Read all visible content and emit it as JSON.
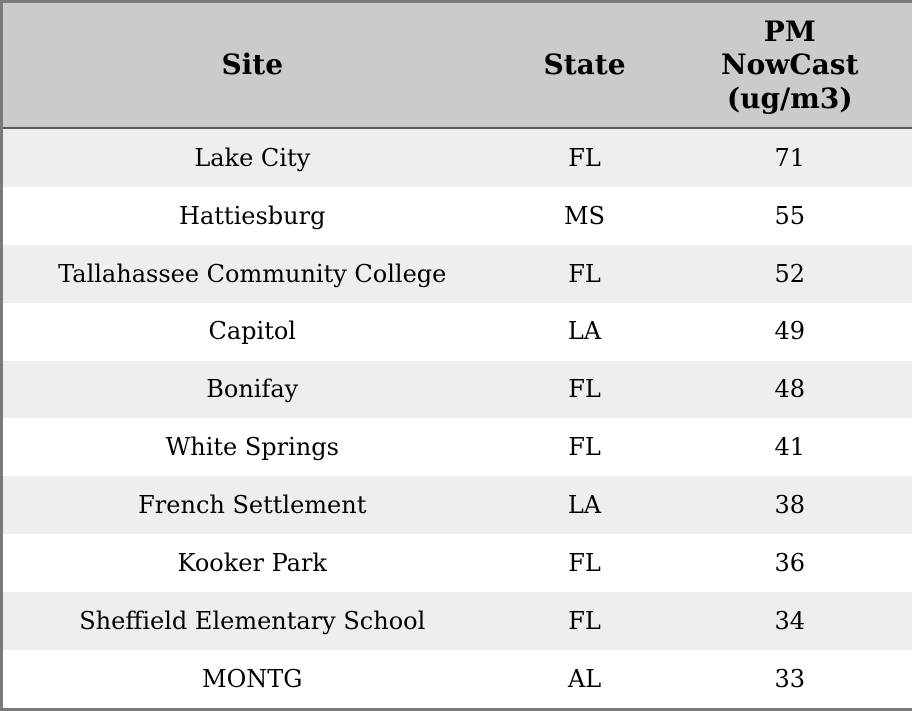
{
  "table": {
    "headers": [
      "Site",
      "State",
      "PM NowCast (ug/m3)"
    ],
    "rows": [
      [
        "Lake City",
        "FL",
        "71"
      ],
      [
        "Hattiesburg",
        "MS",
        "55"
      ],
      [
        "Tallahassee Community College",
        "FL",
        "52"
      ],
      [
        "Capitol",
        "LA",
        "49"
      ],
      [
        "Bonifay",
        "FL",
        "48"
      ],
      [
        "White Springs",
        "FL",
        "41"
      ],
      [
        "French Settlement",
        "LA",
        "38"
      ],
      [
        "Kooker Park",
        "FL",
        "36"
      ],
      [
        "Sheffield Elementary School",
        "FL",
        "34"
      ],
      [
        "MONTG",
        "AL",
        "33"
      ]
    ]
  },
  "chart_data": {
    "type": "table",
    "title": "",
    "columns": [
      "Site",
      "State",
      "PM NowCast (ug/m3)"
    ],
    "rows": [
      {
        "site": "Lake City",
        "state": "FL",
        "pm_nowcast_ugm3": 71
      },
      {
        "site": "Hattiesburg",
        "state": "MS",
        "pm_nowcast_ugm3": 55
      },
      {
        "site": "Tallahassee Community College",
        "state": "FL",
        "pm_nowcast_ugm3": 52
      },
      {
        "site": "Capitol",
        "state": "LA",
        "pm_nowcast_ugm3": 49
      },
      {
        "site": "Bonifay",
        "state": "FL",
        "pm_nowcast_ugm3": 48
      },
      {
        "site": "White Springs",
        "state": "FL",
        "pm_nowcast_ugm3": 41
      },
      {
        "site": "French Settlement",
        "state": "LA",
        "pm_nowcast_ugm3": 38
      },
      {
        "site": "Kooker Park",
        "state": "FL",
        "pm_nowcast_ugm3": 36
      },
      {
        "site": "Sheffield Elementary School",
        "state": "FL",
        "pm_nowcast_ugm3": 34
      },
      {
        "site": "MONTG",
        "state": "AL",
        "pm_nowcast_ugm3": 33
      }
    ]
  },
  "colors": {
    "header_bg": "#cbcbcb",
    "row_alt_bg": "#eeeeee",
    "row_bg": "#ffffff",
    "outer_border": "#7a7a7a",
    "header_divider": "#5a5a5a",
    "text": "#000000"
  }
}
